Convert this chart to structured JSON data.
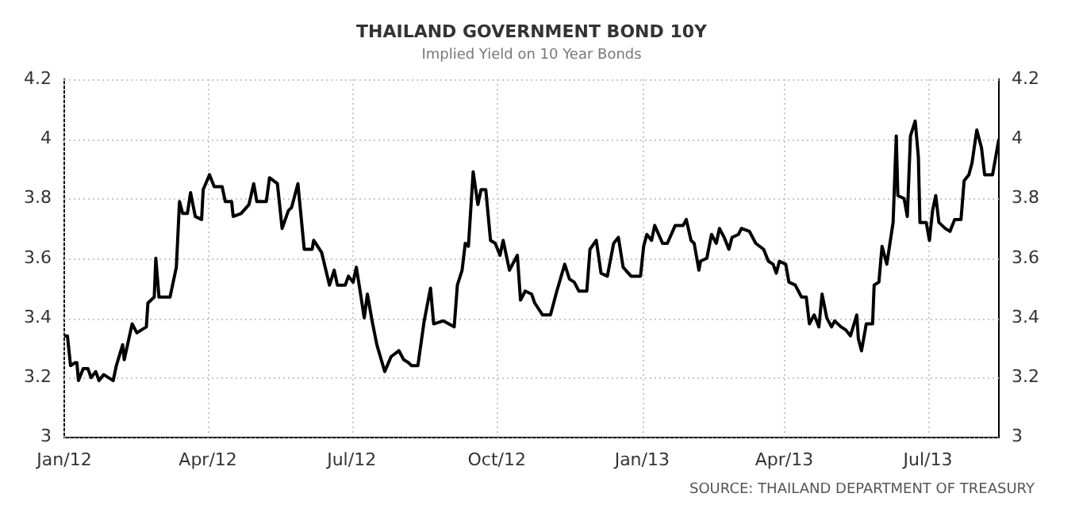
{
  "chart_data": {
    "type": "line",
    "title": "THAILAND GOVERNMENT BOND 10Y",
    "subtitle": "Implied Yield on 10 Year Bonds",
    "annotations": [
      "SOURCE: THAILAND DEPARTMENT OF TREASURY"
    ],
    "x": [
      "2012-01-01",
      "2012-01-03",
      "2012-01-05",
      "2012-01-08",
      "2012-01-09",
      "2012-01-10",
      "2012-01-13",
      "2012-01-16",
      "2012-01-18",
      "2012-01-21",
      "2012-01-23",
      "2012-01-26",
      "2012-02-01",
      "2012-02-03",
      "2012-02-07",
      "2012-02-08",
      "2012-02-13",
      "2012-02-16",
      "2012-02-22",
      "2012-02-23",
      "2012-02-27",
      "2012-02-28",
      "2012-03-01",
      "2012-03-08",
      "2012-03-12",
      "2012-03-14",
      "2012-03-16",
      "2012-03-19",
      "2012-03-21",
      "2012-03-24",
      "2012-03-28",
      "2012-03-29",
      "2012-04-02",
      "2012-04-05",
      "2012-04-10",
      "2012-04-12",
      "2012-04-16",
      "2012-04-17",
      "2012-04-22",
      "2012-04-27",
      "2012-04-30",
      "2012-05-02",
      "2012-05-08",
      "2012-05-10",
      "2012-05-15",
      "2012-05-18",
      "2012-05-22",
      "2012-05-24",
      "2012-05-28",
      "2012-06-01",
      "2012-06-06",
      "2012-06-07",
      "2012-06-12",
      "2012-06-17",
      "2012-06-20",
      "2012-06-22",
      "2012-06-27",
      "2012-06-29",
      "2012-07-02",
      "2012-07-04",
      "2012-07-07",
      "2012-07-09",
      "2012-07-11",
      "2012-07-14",
      "2012-07-17",
      "2012-07-22",
      "2012-07-26",
      "2012-07-31",
      "2012-08-03",
      "2012-08-06",
      "2012-08-08",
      "2012-08-12",
      "2012-08-16",
      "2012-08-20",
      "2012-08-22",
      "2012-08-28",
      "2012-09-04",
      "2012-09-06",
      "2012-09-09",
      "2012-09-11",
      "2012-09-13",
      "2012-09-16",
      "2012-09-19",
      "2012-09-21",
      "2012-09-24",
      "2012-09-27",
      "2012-09-30",
      "2012-10-03",
      "2012-10-05",
      "2012-10-09",
      "2012-10-14",
      "2012-10-16",
      "2012-10-19",
      "2012-10-23",
      "2012-10-25",
      "2012-10-30",
      "2012-11-04",
      "2012-11-08",
      "2012-11-13",
      "2012-11-16",
      "2012-11-19",
      "2012-11-22",
      "2012-11-27",
      "2012-11-29",
      "2012-12-03",
      "2012-12-06",
      "2012-12-10",
      "2012-12-14",
      "2012-12-17",
      "2012-12-20",
      "2012-12-25",
      "2012-12-31",
      "2013-01-02",
      "2013-01-04",
      "2013-01-07",
      "2013-01-09",
      "2013-01-14",
      "2013-01-17",
      "2013-01-22",
      "2013-01-27",
      "2013-01-29",
      "2013-02-01",
      "2013-02-03",
      "2013-02-06",
      "2013-02-07",
      "2013-02-11",
      "2013-02-14",
      "2013-02-17",
      "2013-02-19",
      "2013-02-22",
      "2013-02-25",
      "2013-02-27",
      "2013-03-03",
      "2013-03-05",
      "2013-03-10",
      "2013-03-14",
      "2013-03-19",
      "2013-03-22",
      "2013-03-25",
      "2013-03-27",
      "2013-03-29",
      "2013-04-02",
      "2013-04-04",
      "2013-04-08",
      "2013-04-12",
      "2013-04-15",
      "2013-04-17",
      "2013-04-20",
      "2013-04-23",
      "2013-04-25",
      "2013-04-28",
      "2013-05-01",
      "2013-05-03",
      "2013-05-07",
      "2013-05-10",
      "2013-05-13",
      "2013-05-17",
      "2013-05-18",
      "2013-05-20",
      "2013-05-23",
      "2013-05-27",
      "2013-05-28",
      "2013-05-31",
      "2013-06-02",
      "2013-06-05",
      "2013-06-09",
      "2013-06-11",
      "2013-06-12",
      "2013-06-16",
      "2013-06-18",
      "2013-06-20",
      "2013-06-23",
      "2013-06-25",
      "2013-06-26",
      "2013-06-30",
      "2013-07-02",
      "2013-07-04",
      "2013-07-06",
      "2013-07-08",
      "2013-07-12",
      "2013-07-15",
      "2013-07-18",
      "2013-07-22",
      "2013-07-24",
      "2013-07-27",
      "2013-07-29",
      "2013-08-01",
      "2013-08-04",
      "2013-08-06",
      "2013-08-11",
      "2013-08-13",
      "2013-08-15"
    ],
    "series": [
      {
        "color": "#000000",
        "values": [
          3.34,
          3.34,
          3.24,
          3.25,
          3.25,
          3.19,
          3.23,
          3.23,
          3.2,
          3.22,
          3.19,
          3.21,
          3.19,
          3.24,
          3.31,
          3.26,
          3.38,
          3.35,
          3.37,
          3.45,
          3.47,
          3.6,
          3.47,
          3.47,
          3.57,
          3.79,
          3.75,
          3.75,
          3.82,
          3.74,
          3.73,
          3.83,
          3.88,
          3.84,
          3.84,
          3.79,
          3.79,
          3.74,
          3.75,
          3.78,
          3.85,
          3.79,
          3.79,
          3.87,
          3.85,
          3.7,
          3.76,
          3.77,
          3.85,
          3.63,
          3.63,
          3.66,
          3.62,
          3.51,
          3.56,
          3.51,
          3.51,
          3.54,
          3.52,
          3.57,
          3.47,
          3.4,
          3.48,
          3.39,
          3.31,
          3.22,
          3.27,
          3.29,
          3.26,
          3.25,
          3.24,
          3.24,
          3.39,
          3.5,
          3.38,
          3.39,
          3.37,
          3.51,
          3.56,
          3.65,
          3.64,
          3.89,
          3.78,
          3.83,
          3.83,
          3.66,
          3.65,
          3.61,
          3.66,
          3.56,
          3.61,
          3.46,
          3.49,
          3.48,
          3.45,
          3.41,
          3.41,
          3.49,
          3.58,
          3.53,
          3.52,
          3.49,
          3.49,
          3.63,
          3.66,
          3.55,
          3.54,
          3.65,
          3.67,
          3.57,
          3.54,
          3.54,
          3.64,
          3.68,
          3.66,
          3.71,
          3.65,
          3.65,
          3.71,
          3.71,
          3.73,
          3.66,
          3.65,
          3.56,
          3.59,
          3.6,
          3.68,
          3.65,
          3.7,
          3.67,
          3.63,
          3.67,
          3.68,
          3.7,
          3.69,
          3.65,
          3.63,
          3.59,
          3.58,
          3.55,
          3.59,
          3.58,
          3.52,
          3.51,
          3.47,
          3.47,
          3.38,
          3.41,
          3.37,
          3.48,
          3.4,
          3.37,
          3.39,
          3.37,
          3.36,
          3.34,
          3.41,
          3.33,
          3.29,
          3.38,
          3.38,
          3.51,
          3.52,
          3.64,
          3.58,
          3.72,
          4.01,
          3.81,
          3.8,
          3.74,
          4.01,
          4.06,
          3.94,
          3.72,
          3.72,
          3.66,
          3.76,
          3.81,
          3.72,
          3.7,
          3.69,
          3.73,
          3.73,
          3.86,
          3.88,
          3.92,
          4.03,
          3.97,
          3.88,
          3.88,
          3.94,
          4.0
        ]
      }
    ],
    "xlim": [
      "2012-01-01",
      "2013-08-15"
    ],
    "xticks": [
      {
        "value": "2012-01-01",
        "label": "Jan/12"
      },
      {
        "value": "2012-04-01",
        "label": "Apr/12"
      },
      {
        "value": "2012-07-01",
        "label": "Jul/12"
      },
      {
        "value": "2012-10-01",
        "label": "Oct/12"
      },
      {
        "value": "2013-01-01",
        "label": "Jan/13"
      },
      {
        "value": "2013-04-01",
        "label": "Apr/13"
      },
      {
        "value": "2013-07-01",
        "label": "Jul/13"
      }
    ],
    "ylim": [
      3,
      4.2
    ],
    "yticks": [
      3,
      3.2,
      3.4,
      3.6,
      3.8,
      4,
      4.2
    ],
    "y2lim": [
      3,
      4.2
    ],
    "y2ticks": [
      3,
      3.2,
      3.4,
      3.6,
      3.8,
      4,
      4.2
    ],
    "grid": true,
    "legend": false,
    "marker": "none",
    "line_style": "solid"
  }
}
